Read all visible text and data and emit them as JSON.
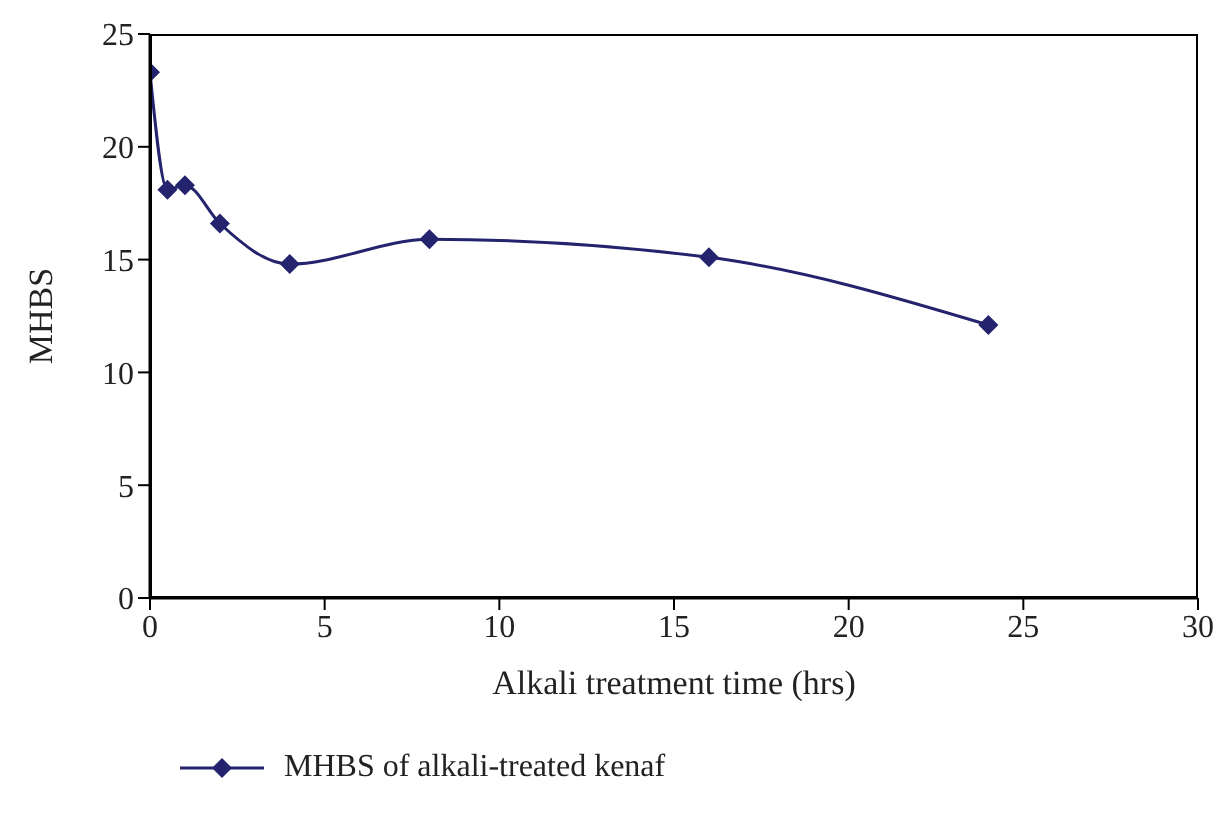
{
  "chart_data": {
    "type": "line",
    "xlabel": "Alkali treatment time (hrs)",
    "ylabel": "MHBS",
    "x": [
      0,
      0.5,
      1,
      2,
      4,
      8,
      16,
      24
    ],
    "series": [
      {
        "name": "MHBS of alkali-treated kenaf",
        "color": "#23236e",
        "values": [
          23.3,
          18.1,
          18.3,
          16.6,
          14.8,
          15.9,
          15.1,
          12.1
        ]
      }
    ],
    "xlim": [
      0,
      30
    ],
    "xticks": [
      0,
      5,
      10,
      15,
      20,
      25,
      30
    ],
    "ylim": [
      0,
      25
    ],
    "yticks": [
      0,
      5,
      10,
      15,
      20,
      25
    ],
    "grid": false,
    "legend": "bottom",
    "marker": "diamond",
    "line_style": "solid"
  }
}
